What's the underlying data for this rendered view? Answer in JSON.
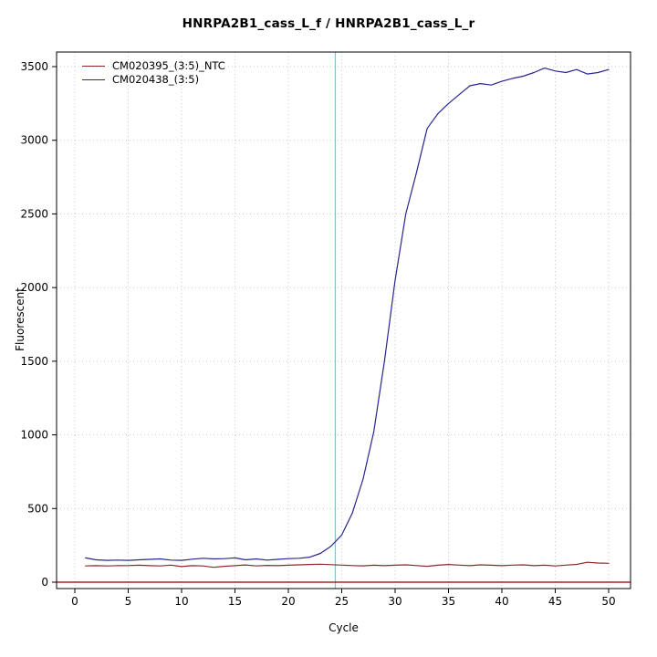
{
  "chart_data": {
    "type": "line",
    "title": "HNRPA2B1_cass_L_f / HNRPA2B1_cass_L_r",
    "xlabel": "Cycle",
    "ylabel": "Fluorescent",
    "xlim": [
      0,
      50
    ],
    "ylim": [
      0,
      3500
    ],
    "xticks": [
      0,
      5,
      10,
      15,
      20,
      25,
      30,
      35,
      40,
      45,
      50
    ],
    "yticks": [
      0,
      500,
      1000,
      1500,
      2000,
      2500,
      3000,
      3500
    ],
    "grid": "dotted gray lines at axis ticks",
    "legend_position": "top-left inside plot, no border",
    "x": [
      1,
      2,
      3,
      4,
      5,
      6,
      7,
      8,
      9,
      10,
      11,
      12,
      13,
      14,
      15,
      16,
      17,
      18,
      19,
      20,
      21,
      22,
      23,
      24,
      25,
      26,
      27,
      28,
      29,
      30,
      31,
      32,
      33,
      34,
      35,
      36,
      37,
      38,
      39,
      40,
      41,
      42,
      43,
      44,
      45,
      46,
      47,
      48,
      49,
      50
    ],
    "series": [
      {
        "name": "CM020395_(3:5)_NTC",
        "color": "#8B2A2A",
        "values": [
          110,
          112,
          110,
          112,
          113,
          115,
          112,
          110,
          116,
          106,
          112,
          110,
          101,
          108,
          112,
          117,
          110,
          114,
          112,
          115,
          118,
          120,
          122,
          119,
          116,
          113,
          111,
          115,
          112,
          115,
          118,
          113,
          108,
          115,
          120,
          116,
          112,
          118,
          115,
          112,
          116,
          118,
          112,
          115,
          110,
          116,
          121,
          135,
          130,
          128
        ]
      },
      {
        "name": "CM020438_(3:5)",
        "color": "#27278F",
        "values": [
          165,
          152,
          148,
          150,
          148,
          152,
          155,
          158,
          150,
          148,
          156,
          162,
          158,
          160,
          165,
          152,
          158,
          150,
          155,
          160,
          162,
          170,
          195,
          245,
          320,
          470,
          700,
          1020,
          1500,
          2050,
          2500,
          2780,
          3080,
          3180,
          3250,
          3310,
          3370,
          3385,
          3375,
          3400,
          3420,
          3435,
          3460,
          3490,
          3470,
          3460,
          3480,
          3450,
          3460,
          3480
        ]
      }
    ],
    "threshold_line": {
      "axis": "x",
      "value": 24.4,
      "color": "#00FFFF"
    },
    "baseline": {
      "axis": "y",
      "value": 0,
      "color": "#8B0000"
    },
    "colors": {
      "grid": "#C9C9C9",
      "axis": "#000000",
      "background": "#FFFFFF"
    }
  }
}
